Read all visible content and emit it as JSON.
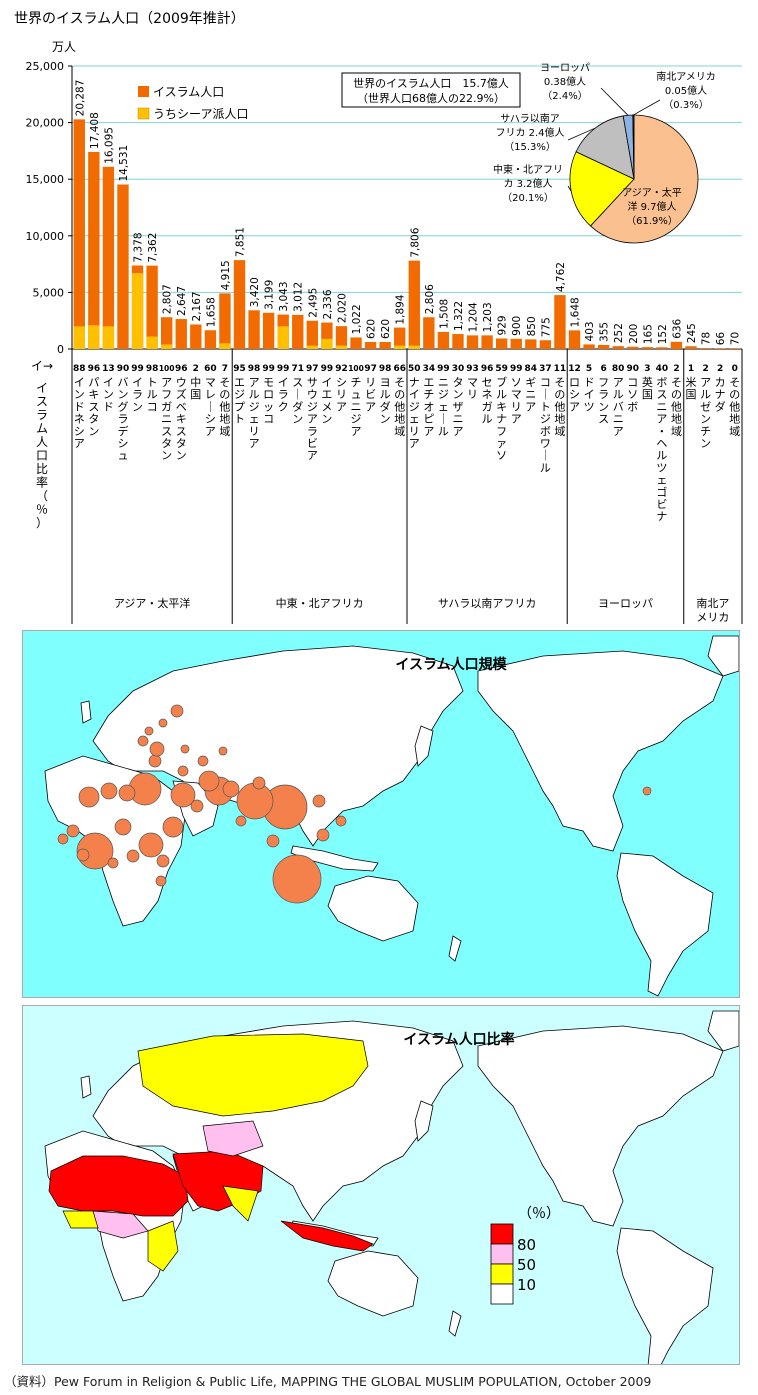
{
  "title": "世界のイスラム人口（2009年推計）",
  "chart_data": {
    "type": "bar",
    "title": "世界のイスラム人口（2009年推計）",
    "ylabel": "万人",
    "ylim": [
      0,
      25000
    ],
    "yticks": [
      "0",
      "5,000",
      "10,000",
      "15,000",
      "20,000",
      "25,000"
    ],
    "ytick_values": [
      0,
      5000,
      10000,
      15000,
      20000,
      25000
    ],
    "legend": [
      "イスラム人口",
      "うちシーア派人口"
    ],
    "series_colors": [
      "#f26b00",
      "#ffc000"
    ],
    "ratio_axis_label": "イスラム人口比率（％）→",
    "categories": [
      {
        "name": "インドネシア",
        "ratio": "88",
        "value": 20287,
        "label": "20,287",
        "shia": 2000,
        "region": "asia"
      },
      {
        "name": "パキスタン",
        "ratio": "96",
        "value": 17408,
        "label": "17,408",
        "shia": 2100,
        "region": "asia"
      },
      {
        "name": "インド",
        "ratio": "13",
        "value": 16095,
        "label": "16,095",
        "shia": 2000,
        "region": "asia"
      },
      {
        "name": "バングラデシュ",
        "ratio": "90",
        "value": 14531,
        "label": "14,531",
        "shia": 0,
        "region": "asia"
      },
      {
        "name": "イラン",
        "ratio": "99",
        "value": 7378,
        "label": "7,378",
        "shia": 6700,
        "region": "asia"
      },
      {
        "name": "トルコ",
        "ratio": "98",
        "value": 7362,
        "label": "7,362",
        "shia": 1100,
        "region": "asia"
      },
      {
        "name": "アフガニスタン",
        "ratio": "100",
        "value": 2807,
        "label": "2,807",
        "shia": 400,
        "region": "asia"
      },
      {
        "name": "ウズベキスタン",
        "ratio": "96",
        "value": 2647,
        "label": "2,647",
        "shia": 0,
        "region": "asia"
      },
      {
        "name": "中国",
        "ratio": "2",
        "value": 2167,
        "label": "2,167",
        "shia": 0,
        "region": "asia"
      },
      {
        "name": "マレーシア",
        "ratio": "60",
        "value": 1658,
        "label": "1,658",
        "shia": 0,
        "region": "asia"
      },
      {
        "name": "その他地域",
        "ratio": "7",
        "value": 4915,
        "label": "4,915",
        "shia": 500,
        "region": "asia"
      },
      {
        "name": "エジプト",
        "ratio": "95",
        "value": 7851,
        "label": "7,851",
        "shia": 0,
        "region": "mena"
      },
      {
        "name": "アルジェリア",
        "ratio": "98",
        "value": 3420,
        "label": "3,420",
        "shia": 0,
        "region": "mena"
      },
      {
        "name": "モロッコ",
        "ratio": "99",
        "value": 3199,
        "label": "3,199",
        "shia": 0,
        "region": "mena"
      },
      {
        "name": "イラク",
        "ratio": "99",
        "value": 3043,
        "label": "3,043",
        "shia": 2000,
        "region": "mena"
      },
      {
        "name": "スーダン",
        "ratio": "71",
        "value": 3012,
        "label": "3,012",
        "shia": 0,
        "region": "mena"
      },
      {
        "name": "サウジアラビア",
        "ratio": "97",
        "value": 2495,
        "label": "2,495",
        "shia": 300,
        "region": "mena"
      },
      {
        "name": "イエメン",
        "ratio": "99",
        "value": 2336,
        "label": "2,336",
        "shia": 900,
        "region": "mena"
      },
      {
        "name": "シリア",
        "ratio": "92",
        "value": 2020,
        "label": "2,020",
        "shia": 300,
        "region": "mena"
      },
      {
        "name": "チュニジア",
        "ratio": "100",
        "value": 1022,
        "label": "1,022",
        "shia": 0,
        "region": "mena"
      },
      {
        "name": "リビア",
        "ratio": "97",
        "value": 620,
        "label": "620",
        "shia": 0,
        "region": "mena"
      },
      {
        "name": "ヨルダン",
        "ratio": "98",
        "value": 620,
        "label": "620",
        "shia": 0,
        "region": "mena"
      },
      {
        "name": "その他地域",
        "ratio": "66",
        "value": 1894,
        "label": "1,894",
        "shia": 300,
        "region": "mena"
      },
      {
        "name": "ナイジェリア",
        "ratio": "50",
        "value": 7806,
        "label": "7,806",
        "shia": 300,
        "region": "ssa"
      },
      {
        "name": "エチオピア",
        "ratio": "34",
        "value": 2806,
        "label": "2,806",
        "shia": 0,
        "region": "ssa"
      },
      {
        "name": "ニジェール",
        "ratio": "99",
        "value": 1508,
        "label": "1,508",
        "shia": 0,
        "region": "ssa"
      },
      {
        "name": "タンザニア",
        "ratio": "30",
        "value": 1322,
        "label": "1,322",
        "shia": 0,
        "region": "ssa"
      },
      {
        "name": "マリ",
        "ratio": "93",
        "value": 1204,
        "label": "1,204",
        "shia": 0,
        "region": "ssa"
      },
      {
        "name": "セネガル",
        "ratio": "96",
        "value": 1203,
        "label": "1,203",
        "shia": 0,
        "region": "ssa"
      },
      {
        "name": "ブルキナファソ",
        "ratio": "59",
        "value": 929,
        "label": "929",
        "shia": 0,
        "region": "ssa"
      },
      {
        "name": "ソマリア",
        "ratio": "99",
        "value": 900,
        "label": "900",
        "shia": 0,
        "region": "ssa"
      },
      {
        "name": "ギニア",
        "ratio": "84",
        "value": 850,
        "label": "850",
        "shia": 0,
        "region": "ssa"
      },
      {
        "name": "コートジボワール",
        "ratio": "37",
        "value": 775,
        "label": "775",
        "shia": 0,
        "region": "ssa"
      },
      {
        "name": "その他地域",
        "ratio": "11",
        "value": 4762,
        "label": "4,762",
        "shia": 0,
        "region": "ssa"
      },
      {
        "name": "ロシア",
        "ratio": "12",
        "value": 1648,
        "label": "1,648",
        "shia": 0,
        "region": "eu"
      },
      {
        "name": "ドイツ",
        "ratio": "5",
        "value": 403,
        "label": "403",
        "shia": 0,
        "region": "eu"
      },
      {
        "name": "フランス",
        "ratio": "6",
        "value": 355,
        "label": "355",
        "shia": 0,
        "region": "eu"
      },
      {
        "name": "アルバニア",
        "ratio": "80",
        "value": 252,
        "label": "252",
        "shia": 0,
        "region": "eu"
      },
      {
        "name": "コソボ",
        "ratio": "90",
        "value": 200,
        "label": "200",
        "shia": 0,
        "region": "eu"
      },
      {
        "name": "英国",
        "ratio": "3",
        "value": 165,
        "label": "165",
        "shia": 0,
        "region": "eu"
      },
      {
        "name": "ボスニア・ヘルツェゴビナ",
        "ratio": "40",
        "value": 152,
        "label": "152",
        "shia": 0,
        "region": "eu"
      },
      {
        "name": "その他地域",
        "ratio": "2",
        "value": 636,
        "label": "636",
        "shia": 0,
        "region": "eu"
      },
      {
        "name": "米国",
        "ratio": "1",
        "value": 245,
        "label": "245",
        "shia": 0,
        "region": "am"
      },
      {
        "name": "アルゼンチン",
        "ratio": "2",
        "value": 78,
        "label": "78",
        "shia": 0,
        "region": "am"
      },
      {
        "name": "カナダ",
        "ratio": "2",
        "value": 66,
        "label": "66",
        "shia": 0,
        "region": "am"
      },
      {
        "name": "その他地域",
        "ratio": "0",
        "value": 70,
        "label": "70",
        "shia": 0,
        "region": "am"
      }
    ],
    "regions": [
      {
        "key": "asia",
        "label": "アジア・太平洋"
      },
      {
        "key": "mena",
        "label": "中東・北アフリカ"
      },
      {
        "key": "ssa",
        "label": "サハラ以南アフリカ"
      },
      {
        "key": "eu",
        "label": "ヨーロッパ"
      },
      {
        "key": "am",
        "label": "南北アメリカ"
      }
    ],
    "world_box": [
      "世界のイスラム人口　15.7億人",
      "（世界人口68億人の22.9%）"
    ],
    "pie": {
      "type": "pie",
      "slices": [
        {
          "name": "アジア・太平洋",
          "value": 61.9,
          "label": [
            "アジア・太平",
            "洋 9.7億人",
            "（61.9%）"
          ],
          "color": "#fac090"
        },
        {
          "name": "中東・北アフリカ",
          "value": 20.1,
          "label": [
            "中東・北アフリ",
            "カ 3.2億人",
            "（20.1%）"
          ],
          "color": "#ffff00"
        },
        {
          "name": "サハラ以南アフリカ",
          "value": 15.3,
          "label": [
            "サハラ以南ア",
            "フリカ 2.4億人",
            "（15.3%）"
          ],
          "color": "#bfbfbf"
        },
        {
          "name": "ヨーロッパ",
          "value": 2.4,
          "label": [
            "ヨーロッパ",
            "0.38億人",
            "（2.4%）"
          ],
          "color": "#8db3e2"
        },
        {
          "name": "南北アメリカ",
          "value": 0.3,
          "label": [
            "南北アメリカ",
            "0.05億人",
            "（0.3%）"
          ],
          "color": "#1f3f7f"
        }
      ]
    }
  },
  "map_scale": {
    "title": "イスラム人口規模",
    "land_color": "#ffffff",
    "sea_color": "#80ffff",
    "bubble_color": "#f4814b"
  },
  "map_ratio": {
    "title": "イスラム人口比率",
    "legend_title": "（％）",
    "legend_labels": [
      "80",
      "50",
      "10"
    ],
    "legend_colors": [
      "#ff0000",
      "#ffc0f0",
      "#ffff00",
      "#ffffff"
    ],
    "sea_color": "#ccffff"
  },
  "source": "（資料）Pew Forum in Religion & Public Life, MAPPING THE GLOBAL MUSLIM POPULATION, October 2009"
}
